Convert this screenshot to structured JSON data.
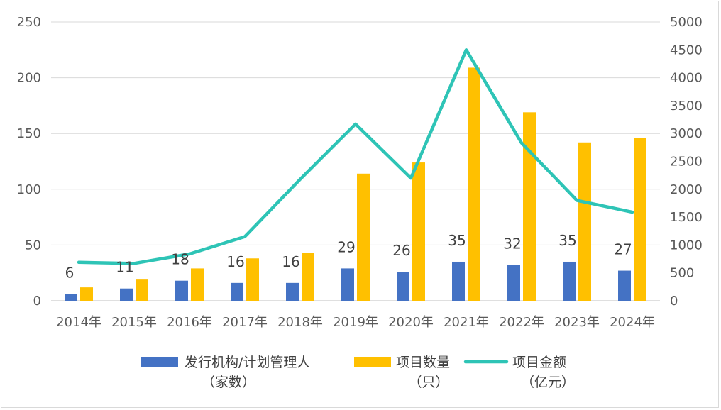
{
  "chart_data": {
    "type": "bar",
    "categories": [
      "2014年",
      "2015年",
      "2016年",
      "2017年",
      "2018年",
      "2019年",
      "2020年",
      "2021年",
      "2022年",
      "2023年",
      "2024年"
    ],
    "series": [
      {
        "name": "发行机构/计划管理人",
        "unit": "（家数）",
        "type": "bar",
        "axis": "left",
        "color": "#4472c4",
        "values": [
          6,
          11,
          18,
          16,
          16,
          29,
          26,
          35,
          32,
          35,
          27
        ],
        "data_labels": true
      },
      {
        "name": "项目数量",
        "unit": "（只）",
        "type": "bar",
        "axis": "left",
        "color": "#ffc000",
        "values": [
          12,
          19,
          29,
          38,
          43,
          114,
          124,
          209,
          169,
          142,
          146
        ],
        "data_labels": false
      },
      {
        "name": "项目金额",
        "unit": "（亿元）",
        "type": "line",
        "axis": "right",
        "color": "#2ec4b6",
        "values": [
          690,
          670,
          840,
          1150,
          2180,
          3170,
          2200,
          4500,
          2830,
          1800,
          1590
        ],
        "data_labels": false
      }
    ],
    "left_axis": {
      "min": 0,
      "max": 250,
      "step": 50,
      "ticks": [
        "0",
        "50",
        "100",
        "150",
        "200",
        "250"
      ]
    },
    "right_axis": {
      "min": 0,
      "max": 5000,
      "step": 500,
      "ticks": [
        "0",
        "500",
        "1000",
        "1500",
        "2000",
        "2500",
        "3000",
        "3500",
        "4000",
        "4500",
        "5000"
      ]
    },
    "title": "",
    "xlabel": "",
    "ylabel": "",
    "grid": true,
    "legend": "bottom"
  }
}
